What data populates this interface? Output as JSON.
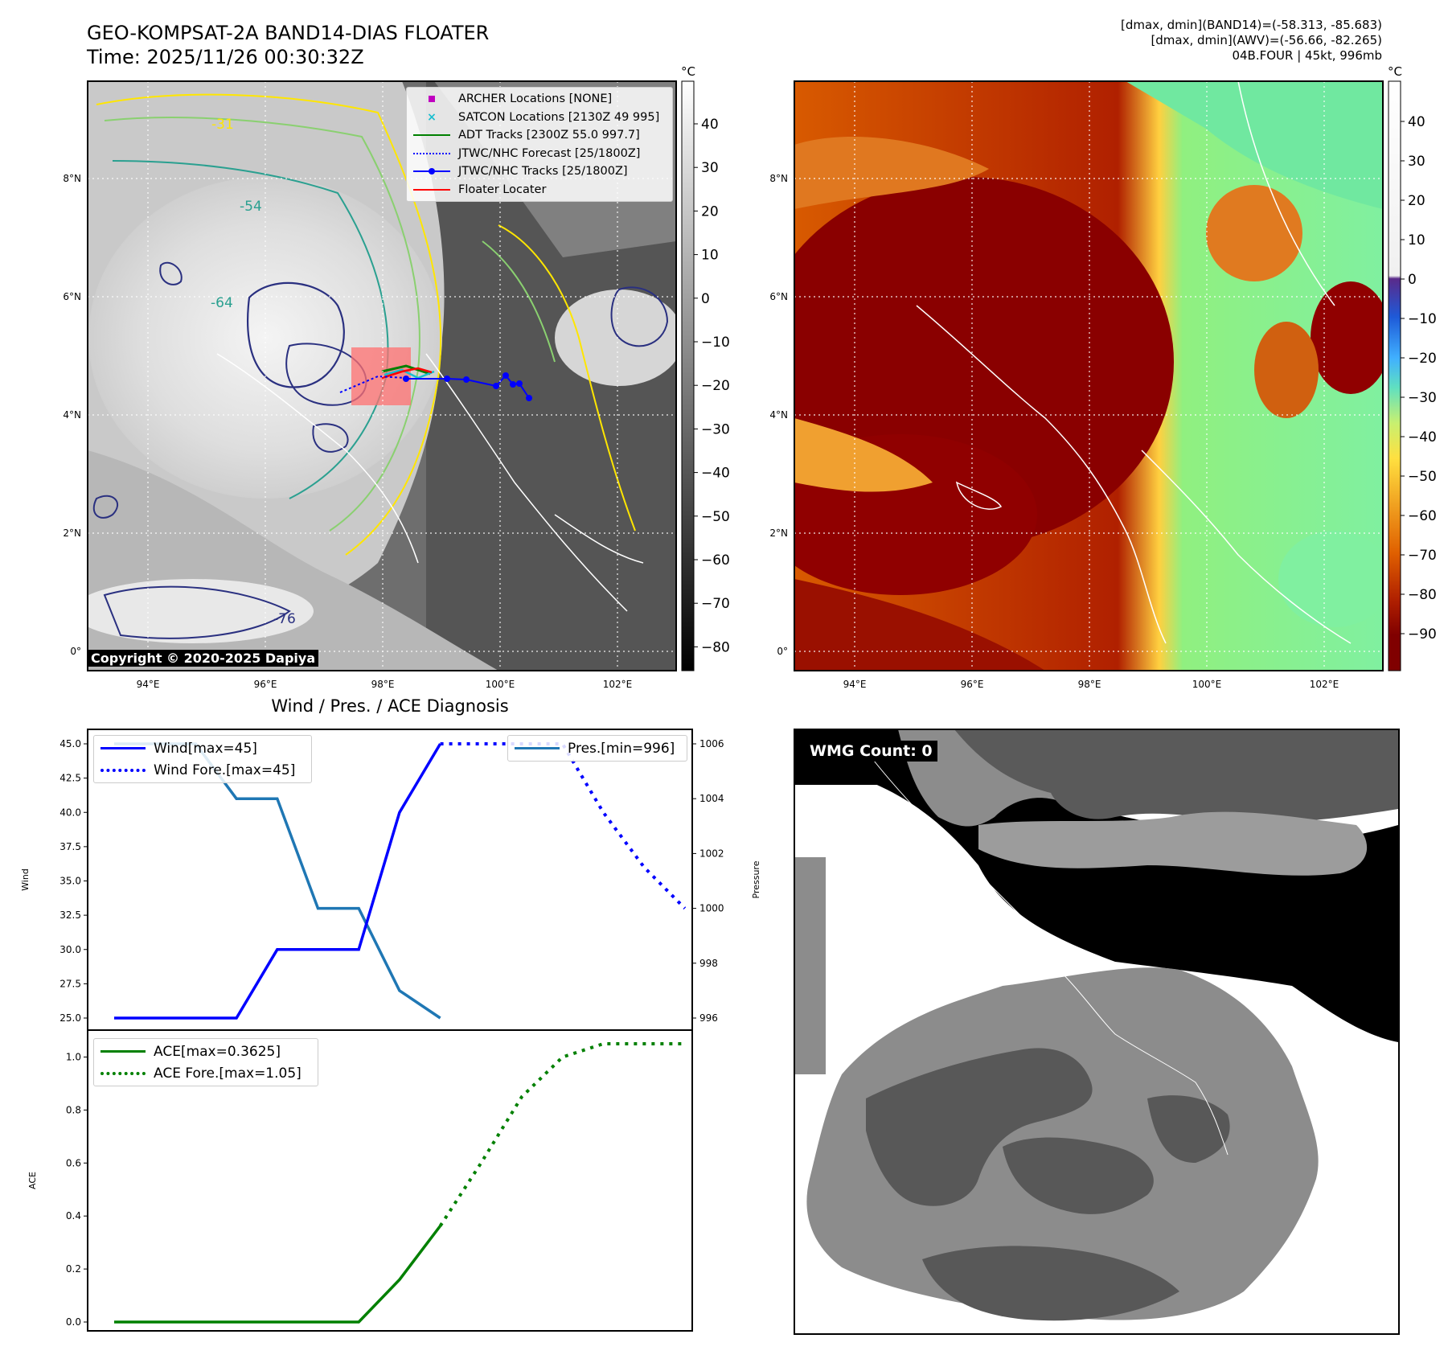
{
  "header": {
    "title_line1": "GEO-KOMPSAT-2A BAND14-DIAS FLOATER",
    "title_line2": "Time: 2025/11/26 00:30:32Z",
    "info_line1": "[dmax, dmin](BAND14)=(-58.313, -85.683)",
    "info_line2": "[dmax, dmin](AWV)=(-56.66, -82.265)",
    "info_line3": "04B.FOUR | 45kt, 996mb"
  },
  "sat_panel": {
    "legend": [
      {
        "label": "ARCHER Locations [NONE]",
        "color": "#c000c0",
        "icon": "square-marker-icon"
      },
      {
        "label": "SATCON Locations [2130Z 49 995]",
        "color": "#17becf",
        "icon": "x-marker-icon"
      },
      {
        "label": "ADT Tracks [2300Z 55.0 997.7]",
        "color": "#008000",
        "icon": "solid-line-icon"
      },
      {
        "label": "JTWC/NHC Forecast [25/1800Z]",
        "color": "#0000ff",
        "icon": "dotted-line-icon"
      },
      {
        "label": "JTWC/NHC Tracks [25/1800Z]",
        "color": "#0000ff",
        "icon": "dot-line-icon"
      },
      {
        "label": "Floater Locater",
        "color": "#ff0000",
        "icon": "solid-line-icon"
      }
    ],
    "copyright": "Copyright © 2020-2025 Dapiya",
    "contour_labels": [
      "-31",
      "-54",
      "-64",
      "-76"
    ],
    "cbar_unit": "°C",
    "cbar_ticks": [
      "40",
      "30",
      "20",
      "10",
      "0",
      "−10",
      "−20",
      "−30",
      "−40",
      "−50",
      "−60",
      "−70",
      "−80"
    ]
  },
  "awv_panel": {
    "cbar_unit": "°C",
    "cbar_ticks": [
      "40",
      "30",
      "20",
      "10",
      "0",
      "−10",
      "−20",
      "−30",
      "−40",
      "−50",
      "−60",
      "−70",
      "−80",
      "−90"
    ]
  },
  "map_axes": {
    "lon_ticks": [
      "94°E",
      "96°E",
      "98°E",
      "100°E",
      "102°E"
    ],
    "lat_ticks": [
      "8°N",
      "6°N",
      "4°N",
      "2°N",
      "0°"
    ]
  },
  "diag_panel": {
    "title": "Wind / Pres. / ACE Diagnosis",
    "wind_ylabel": "Wind",
    "pres_ylabel": "Pressure",
    "ace_ylabel": "ACE",
    "wind_legend": [
      "Wind[max=45]",
      "Wind Fore.[max=45]"
    ],
    "pres_legend": [
      "Pres.[min=996]"
    ],
    "ace_legend": [
      "ACE[max=0.3625]",
      "ACE Fore.[max=1.05]"
    ],
    "wind_ticks": [
      "45.0",
      "42.5",
      "40.0",
      "37.5",
      "35.0",
      "32.5",
      "30.0",
      "27.5",
      "25.0"
    ],
    "pres_ticks": [
      "1006",
      "1004",
      "1002",
      "1000",
      "998",
      "996"
    ],
    "ace_ticks": [
      "1.0",
      "0.8",
      "0.6",
      "0.4",
      "0.2",
      "0.0"
    ]
  },
  "wmg_panel": {
    "label": "WMG Count: 0"
  },
  "chart_data": [
    {
      "type": "line",
      "series": [
        {
          "name": "Wind[max=45]",
          "color": "#0000ff",
          "style": "solid",
          "x": [
            0,
            1,
            2,
            3,
            4,
            5,
            6,
            7,
            8
          ],
          "values": [
            25,
            25,
            25,
            25,
            30,
            30,
            30,
            40,
            45
          ]
        },
        {
          "name": "Wind Fore.[max=45]",
          "color": "#0000ff",
          "style": "dotted",
          "x": [
            8,
            9,
            10,
            11,
            12,
            13,
            14
          ],
          "values": [
            45,
            45,
            45,
            45,
            40,
            36,
            33
          ]
        }
      ],
      "xlabel": "",
      "ylabel": "Wind",
      "ylim": [
        25,
        45
      ]
    },
    {
      "type": "line",
      "series": [
        {
          "name": "Pres.[min=996]",
          "color": "#1f77b4",
          "style": "solid",
          "x": [
            0,
            1,
            2,
            3,
            4,
            5,
            6,
            7,
            8
          ],
          "values": [
            1006,
            1006,
            1006,
            1004,
            1004,
            1000,
            1000,
            997,
            996
          ]
        }
      ],
      "xlabel": "",
      "ylabel": "Pressure",
      "ylim": [
        996,
        1006
      ]
    },
    {
      "type": "line",
      "series": [
        {
          "name": "ACE[max=0.3625]",
          "color": "#008000",
          "style": "solid",
          "x": [
            0,
            1,
            2,
            3,
            4,
            5,
            6,
            7,
            8
          ],
          "values": [
            0,
            0,
            0,
            0,
            0,
            0,
            0,
            0.16,
            0.3625
          ]
        },
        {
          "name": "ACE Fore.[max=1.05]",
          "color": "#008000",
          "style": "dotted",
          "x": [
            8,
            9,
            10,
            11,
            12,
            13,
            14
          ],
          "values": [
            0.3625,
            0.6,
            0.85,
            1.0,
            1.05,
            1.05,
            1.05
          ]
        }
      ],
      "xlabel": "",
      "ylabel": "ACE",
      "ylim": [
        0,
        1.05
      ]
    }
  ]
}
